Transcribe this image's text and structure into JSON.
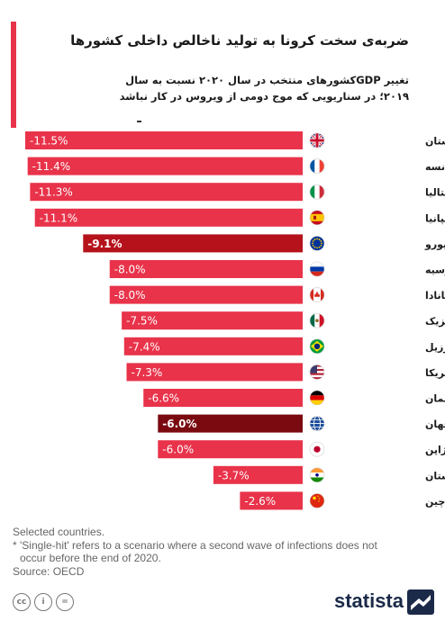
{
  "header": {
    "title": "ضربه‌ی سخت کرونا به تولید ناخالص داخلی کشورها",
    "subtitle_line1": "تغییر GDPکشورهای منتخب در سال ۲۰۲۰ نسبت به سال",
    "subtitle_line2": "۲۰۱۹؛ در سناریویی که موج دومی از ویروس در کار نباشد"
  },
  "chart_data": {
    "type": "bar",
    "orientation": "horizontal",
    "categories": [
      "انگلستان",
      "فرانسه",
      "ایتالیا",
      "اسپانیا",
      "منطقه یورو",
      "روسیه",
      "کانادا",
      "مکزیک",
      "برزیل",
      "آمریکا",
      "آلمان",
      "جهان",
      "ژاپن",
      "هندوستان",
      "چین"
    ],
    "values": [
      -11.5,
      -11.4,
      -11.3,
      -11.1,
      -9.1,
      -8.0,
      -8.0,
      -7.5,
      -7.4,
      -7.3,
      -6.6,
      -6.0,
      -6.0,
      -3.7,
      -2.6
    ],
    "value_labels": [
      "-11.5%",
      "-11.4%",
      "-11.3%",
      "-11.1%",
      "-9.1%",
      "-8.0%",
      "-8.0%",
      "-7.5%",
      "-7.4%",
      "-7.3%",
      "-6.6%",
      "-6.0%",
      "-6.0%",
      "-3.7%",
      "-2.6%"
    ],
    "highlight": {
      "منطقه یورو": "#b5121b",
      "جهان": "#7a0a10"
    },
    "flags": [
      "uk-flag",
      "france-flag",
      "italy-flag",
      "spain-flag",
      "eu-flag",
      "russia-flag",
      "canada-flag",
      "mexico-flag",
      "brazil-flag",
      "usa-flag",
      "germany-flag",
      "world-icon",
      "japan-flag",
      "india-flag",
      "china-flag"
    ],
    "bar_color": "#e8334a",
    "xlim": [
      -11.5,
      0
    ]
  },
  "footer": {
    "note1": "Selected countries.",
    "note2": "* 'Single-hit' refers to a scenario where a second wave of infections does not",
    "note3": "occur before the end of 2020.",
    "source": "Source: OECD",
    "brand": "statista"
  },
  "colors": {
    "accent": "#e8334a",
    "brand": "#1b2a48"
  }
}
